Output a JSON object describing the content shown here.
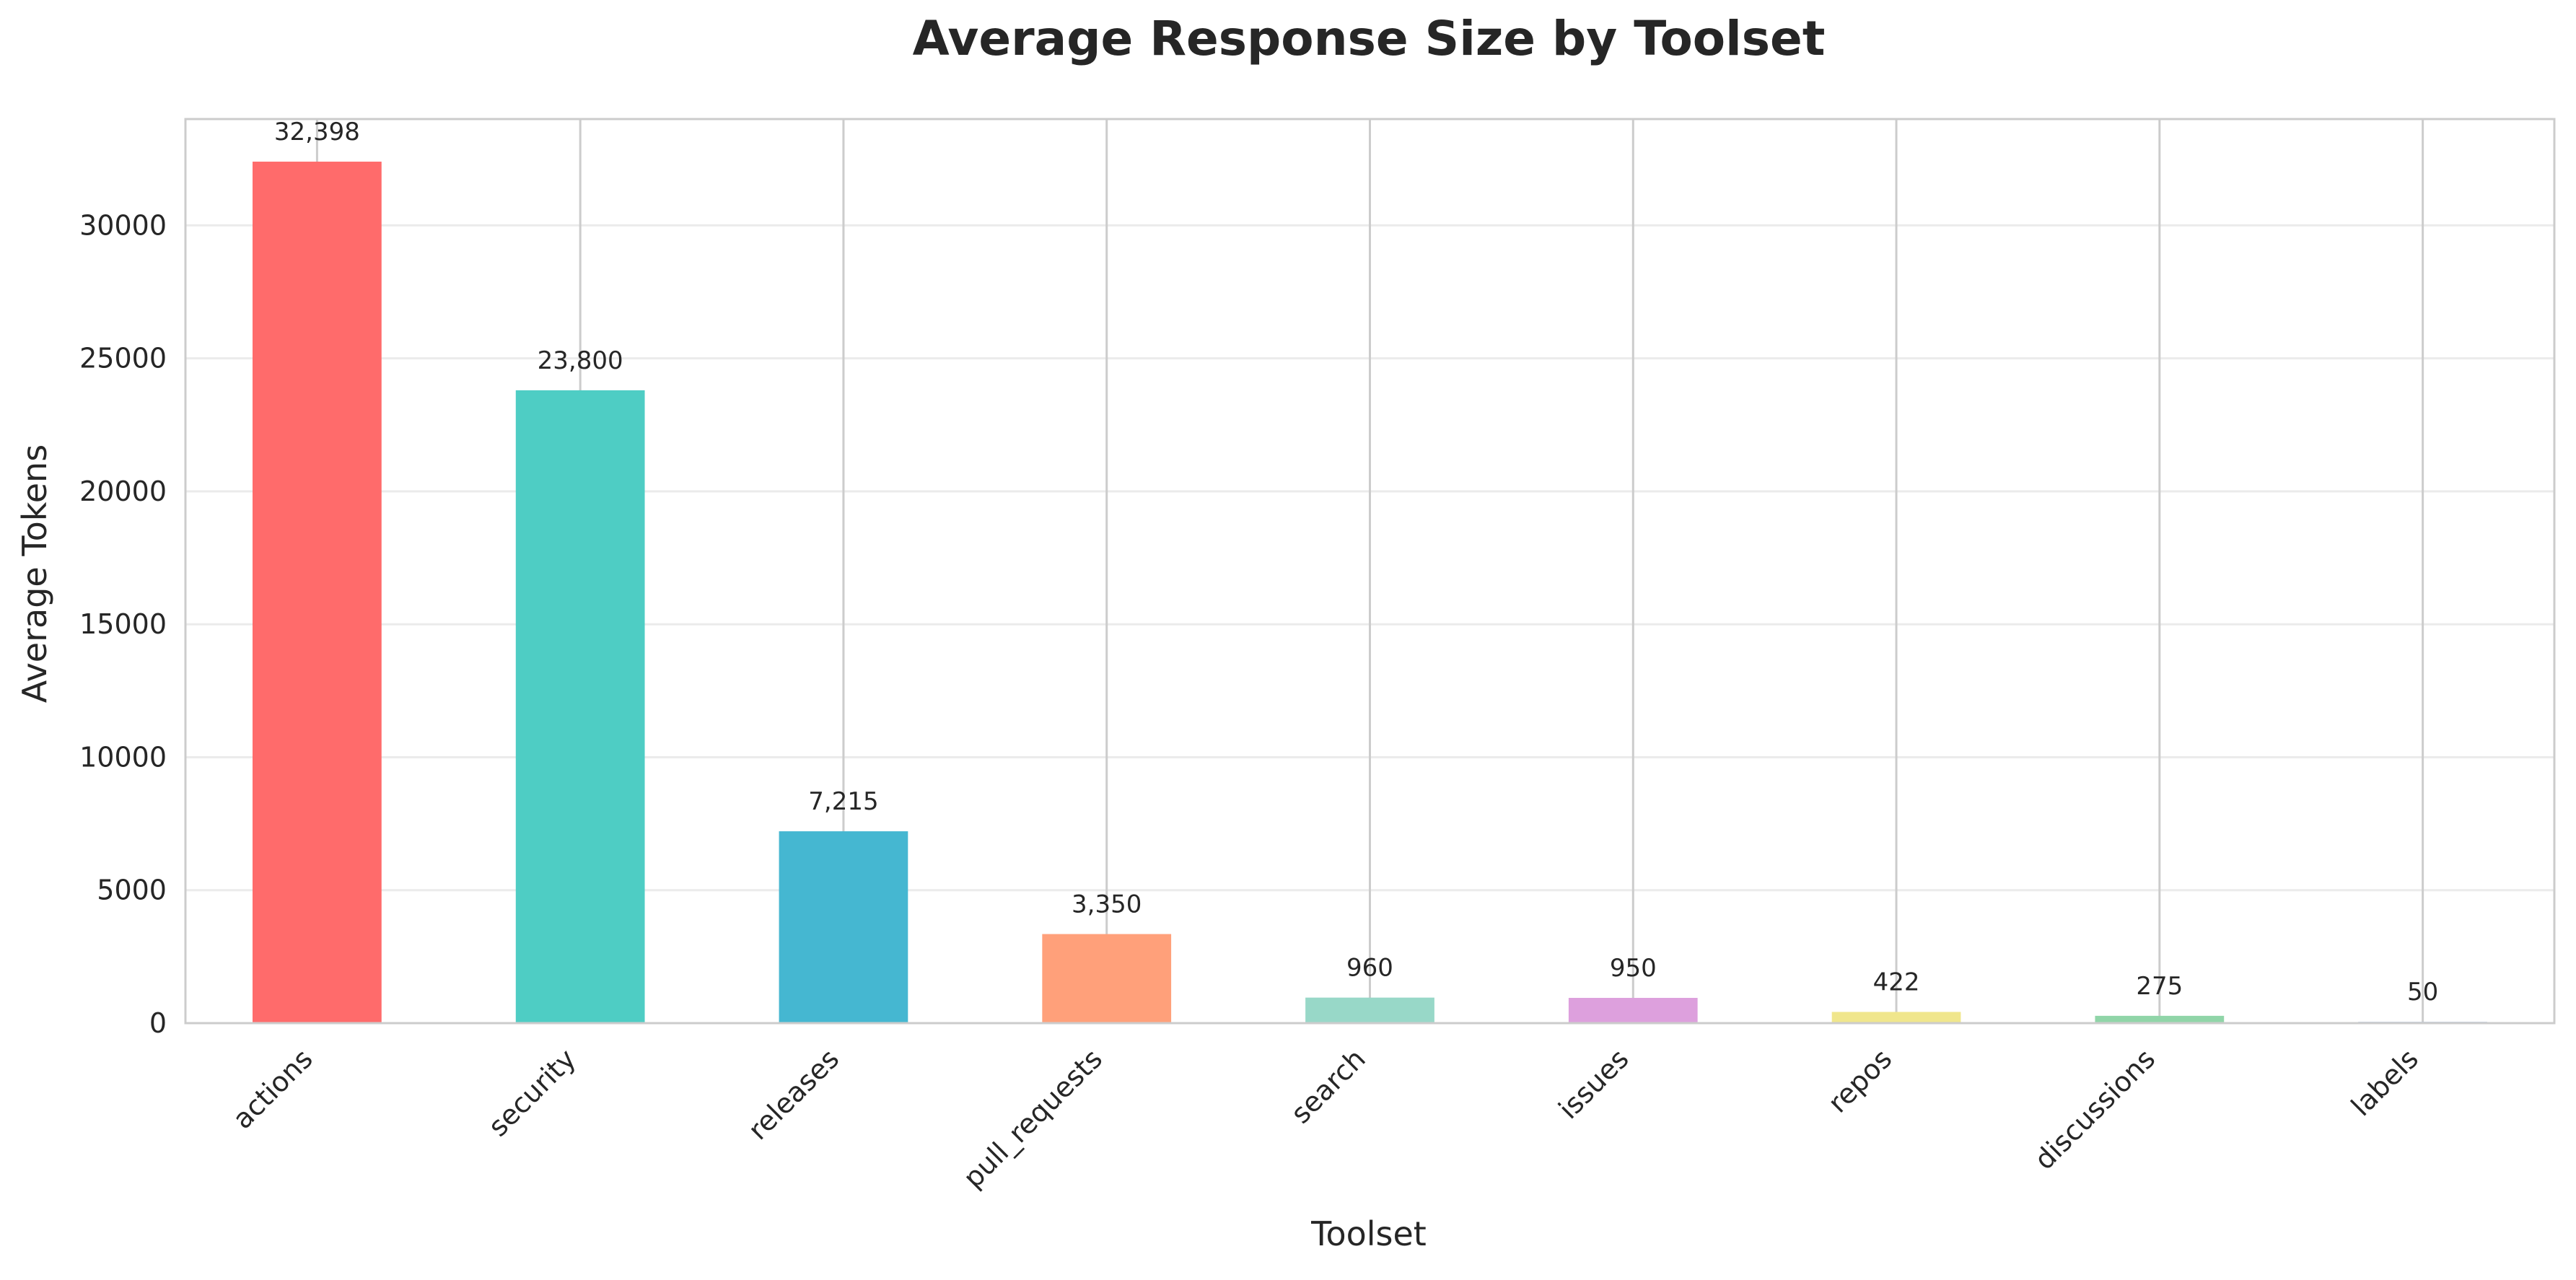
{
  "chart_data": {
    "type": "bar",
    "title": "Average Response Size by Toolset",
    "xlabel": "Toolset",
    "ylabel": "Average Tokens",
    "categories": [
      "actions",
      "security",
      "releases",
      "pull_requests",
      "search",
      "issues",
      "repos",
      "discussions",
      "labels"
    ],
    "values": [
      32398,
      23800,
      7215,
      3350,
      960,
      950,
      422,
      275,
      50
    ],
    "data_labels": [
      "32,398",
      "23,800",
      "7,215",
      "3,350",
      "960",
      "950",
      "422",
      "275",
      "50"
    ],
    "colors": [
      "#ff6b6b",
      "#4ecdc4",
      "#45b7d1",
      "#ffa07a",
      "#98d8c8",
      "#dda0dd",
      "#f0e68c",
      "#90d5a8",
      "#b0c4de"
    ],
    "y_ticks": [
      0,
      5000,
      10000,
      15000,
      20000,
      25000,
      30000
    ],
    "ylim": [
      0,
      34000
    ],
    "grid": true
  }
}
